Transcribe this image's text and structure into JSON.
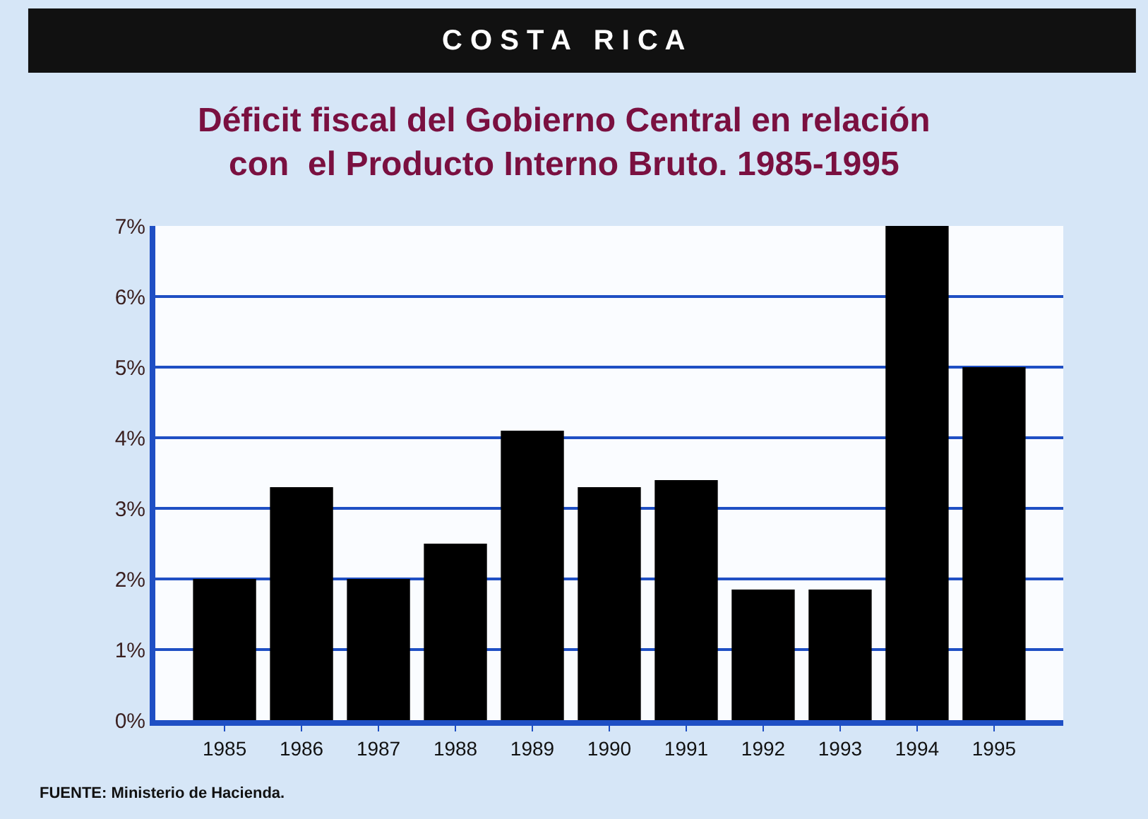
{
  "chart_data": {
    "type": "bar",
    "title": "C O S T A   R I C A",
    "subtitle": "Déficit fiscal del Gobierno Central en relación\ncon  el Producto Interno Bruto. 1985-1995",
    "categories": [
      "1985",
      "1986",
      "1987",
      "1988",
      "1989",
      "1990",
      "1991",
      "1992",
      "1993",
      "1994",
      "1995"
    ],
    "values": [
      2.0,
      3.3,
      2.0,
      2.5,
      4.1,
      3.3,
      3.4,
      1.85,
      1.85,
      7.0,
      5.0
    ],
    "color": "#000000",
    "ylim": [
      0,
      7
    ],
    "yticks": [
      {
        "value": 0,
        "label": "0%"
      },
      {
        "value": 1,
        "label": "1%"
      },
      {
        "value": 2,
        "label": "2%"
      },
      {
        "value": 3,
        "label": "3%"
      },
      {
        "value": 4,
        "label": "4%"
      },
      {
        "value": 5,
        "label": "5%"
      },
      {
        "value": 6,
        "label": "6%"
      },
      {
        "value": 7,
        "label": "7%"
      }
    ],
    "grid": "y",
    "annotations": [
      "FUENTE: Ministerio de Hacienda."
    ]
  }
}
